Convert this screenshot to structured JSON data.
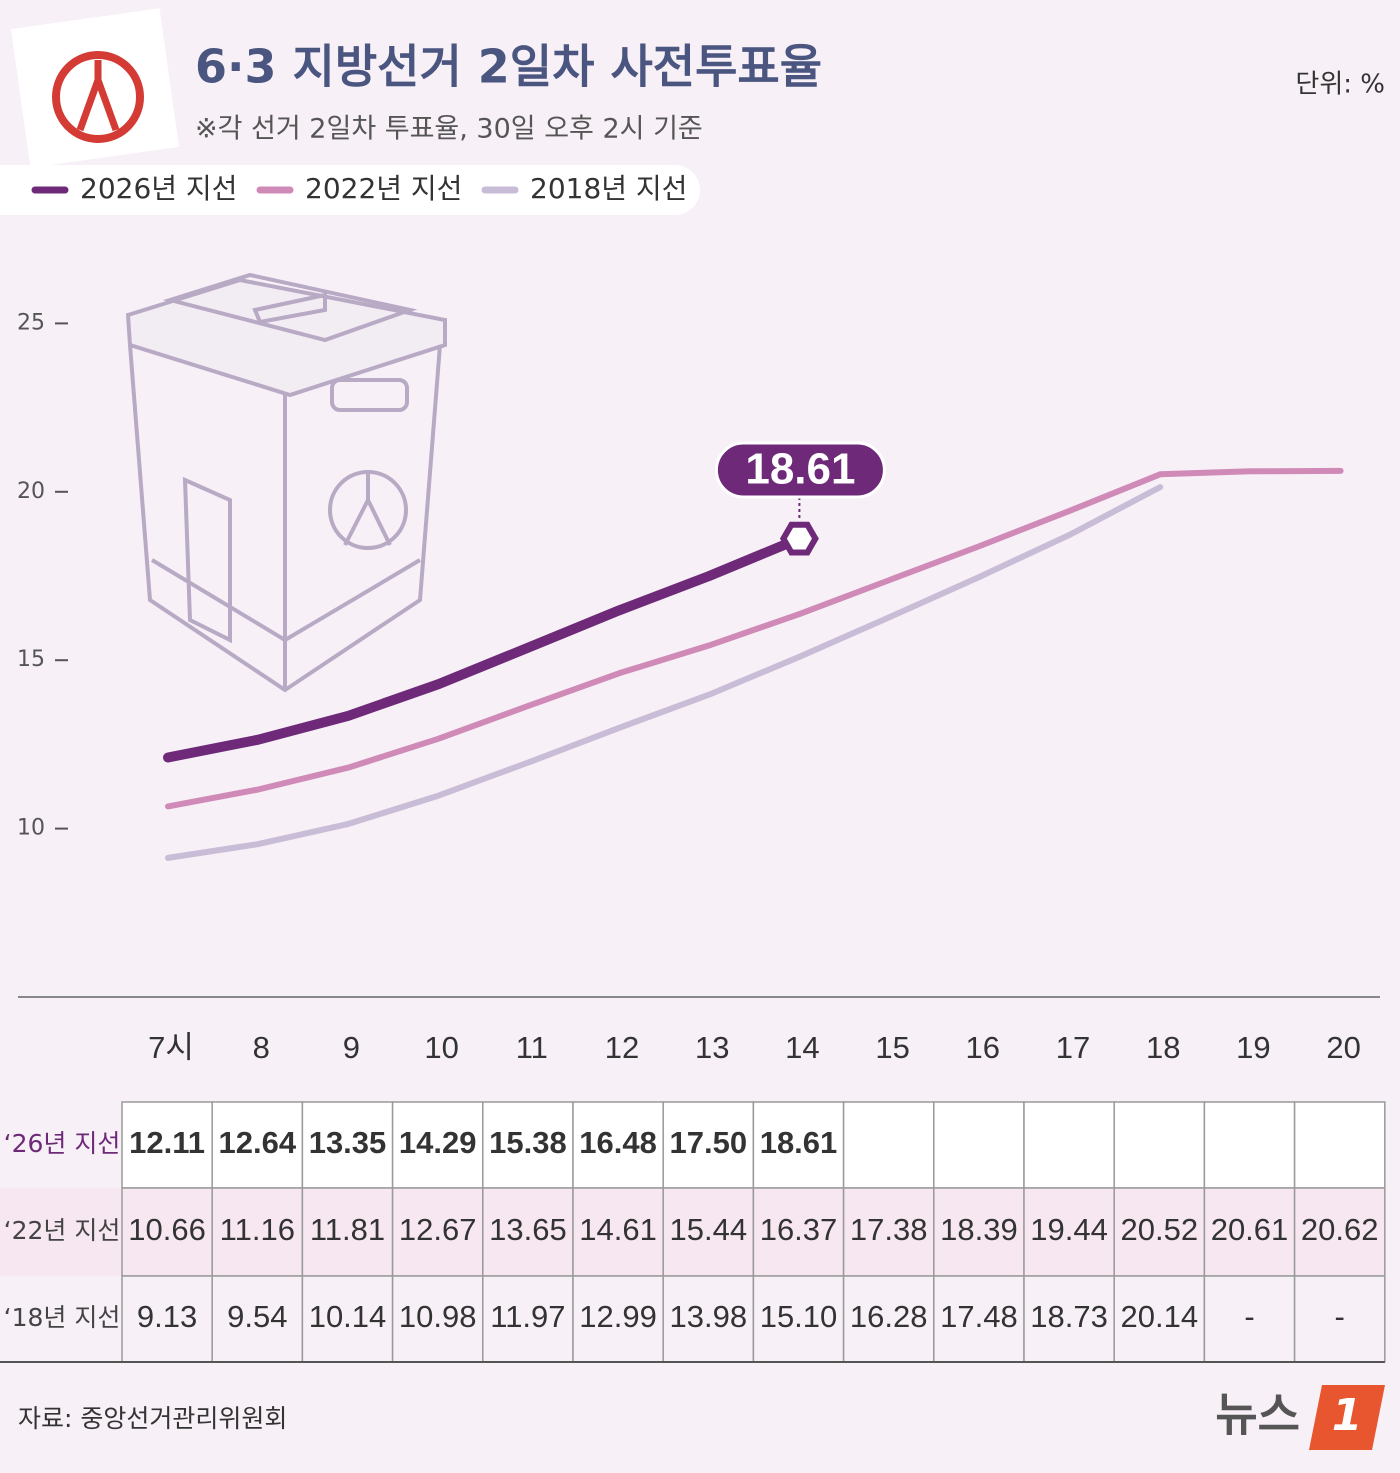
{
  "chart_data": {
    "type": "line",
    "title": "6·3 지방선거 2일차 사전투표율",
    "subtitle": "※각 선거 2일차 투표율, 30일 오후 2시 기준",
    "unit": "단위: %",
    "source": "자료: 중앙선거관리위원회",
    "categories": [
      "7시",
      "8",
      "9",
      "10",
      "11",
      "12",
      "13",
      "14",
      "15",
      "16",
      "17",
      "18",
      "19",
      "20"
    ],
    "ylim": [
      5,
      30
    ],
    "yticks": [
      10,
      15,
      20,
      25
    ],
    "grid": false,
    "legend": "top-left",
    "series": [
      {
        "name": "2026년 지선",
        "row_label": "‘26년 지선",
        "color": "#6e2a78",
        "values": [
          12.11,
          12.64,
          13.35,
          14.29,
          15.38,
          16.48,
          17.5,
          18.61,
          null,
          null,
          null,
          null,
          null,
          null
        ],
        "value_labels": [
          "12.11",
          "12.64",
          "13.35",
          "14.29",
          "15.38",
          "16.48",
          "17.50",
          "18.61",
          null,
          null,
          null,
          null,
          null,
          null
        ]
      },
      {
        "name": "2022년 지선",
        "row_label": "‘22년 지선",
        "color": "#d08ab8",
        "values": [
          10.66,
          11.16,
          11.81,
          12.67,
          13.65,
          14.61,
          15.44,
          16.37,
          17.38,
          18.39,
          19.44,
          20.52,
          20.61,
          20.62
        ],
        "value_labels": [
          "10.66",
          "11.16",
          "11.81",
          "12.67",
          "13.65",
          "14.61",
          "15.44",
          "16.37",
          "17.38",
          "18.39",
          "19.44",
          "20.52",
          "20.61",
          "20.62"
        ]
      },
      {
        "name": "2018년 지선",
        "row_label": "‘18년 지선",
        "color": "#c9bcd6",
        "values": [
          9.13,
          9.54,
          10.14,
          10.98,
          11.97,
          12.99,
          13.98,
          15.1,
          16.28,
          17.48,
          18.73,
          20.14,
          null,
          null
        ],
        "value_labels": [
          "9.13",
          "9.54",
          "10.14",
          "10.98",
          "11.97",
          "12.99",
          "13.98",
          "15.10",
          "16.28",
          "17.48",
          "18.73",
          "20.14",
          "-",
          "-"
        ]
      }
    ],
    "logo": {
      "text": "뉴스",
      "mark": "1"
    }
  }
}
